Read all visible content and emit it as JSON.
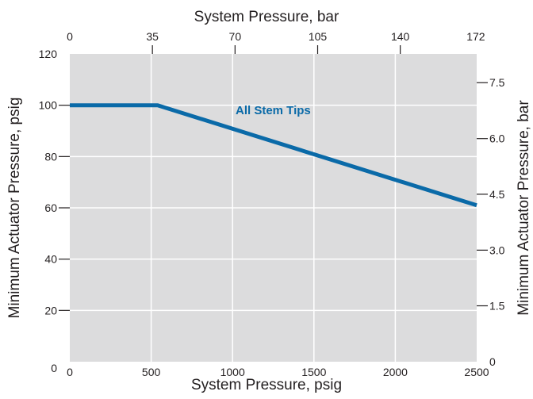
{
  "chart_data": {
    "type": "line",
    "title": "",
    "xlabel": "System Pressure, psig",
    "ylabel": "Minimum Actuator Pressure, psig",
    "x2label": "System Pressure, bar",
    "y2label": "Minimum Actuator Pressure, bar",
    "xlim": [
      0,
      2500
    ],
    "ylim": [
      0,
      120
    ],
    "x_ticks": [
      0,
      500,
      1000,
      1500,
      2000,
      2500
    ],
    "y_ticks": [
      0,
      20,
      40,
      60,
      80,
      100,
      120
    ],
    "x2_ticks": [
      {
        "label": "0",
        "value": 0
      },
      {
        "label": "35",
        "value": 507.6
      },
      {
        "label": "70",
        "value": 1015.3
      },
      {
        "label": "105",
        "value": 1522.9
      },
      {
        "label": "140",
        "value": 2030.5
      },
      {
        "label": "172",
        "value": 2494.6
      }
    ],
    "y2_ticks": [
      {
        "label": "0",
        "value": 0
      },
      {
        "label": "1.5",
        "value": 21.8
      },
      {
        "label": "3.0",
        "value": 43.5
      },
      {
        "label": "4.5",
        "value": 65.3
      },
      {
        "label": "6.0",
        "value": 87.0
      },
      {
        "label": "7.5",
        "value": 108.8
      }
    ],
    "grid": true,
    "series": [
      {
        "name": "All Stem Tips",
        "color": "#0a6aa8",
        "x": [
          0,
          540,
          2500
        ],
        "y": [
          100,
          100,
          61
        ]
      }
    ]
  },
  "colors": {
    "plot_background": "#dcdcdd",
    "grid": "#ffffff",
    "axis": "#231f20",
    "series": "#0a6aa8"
  }
}
